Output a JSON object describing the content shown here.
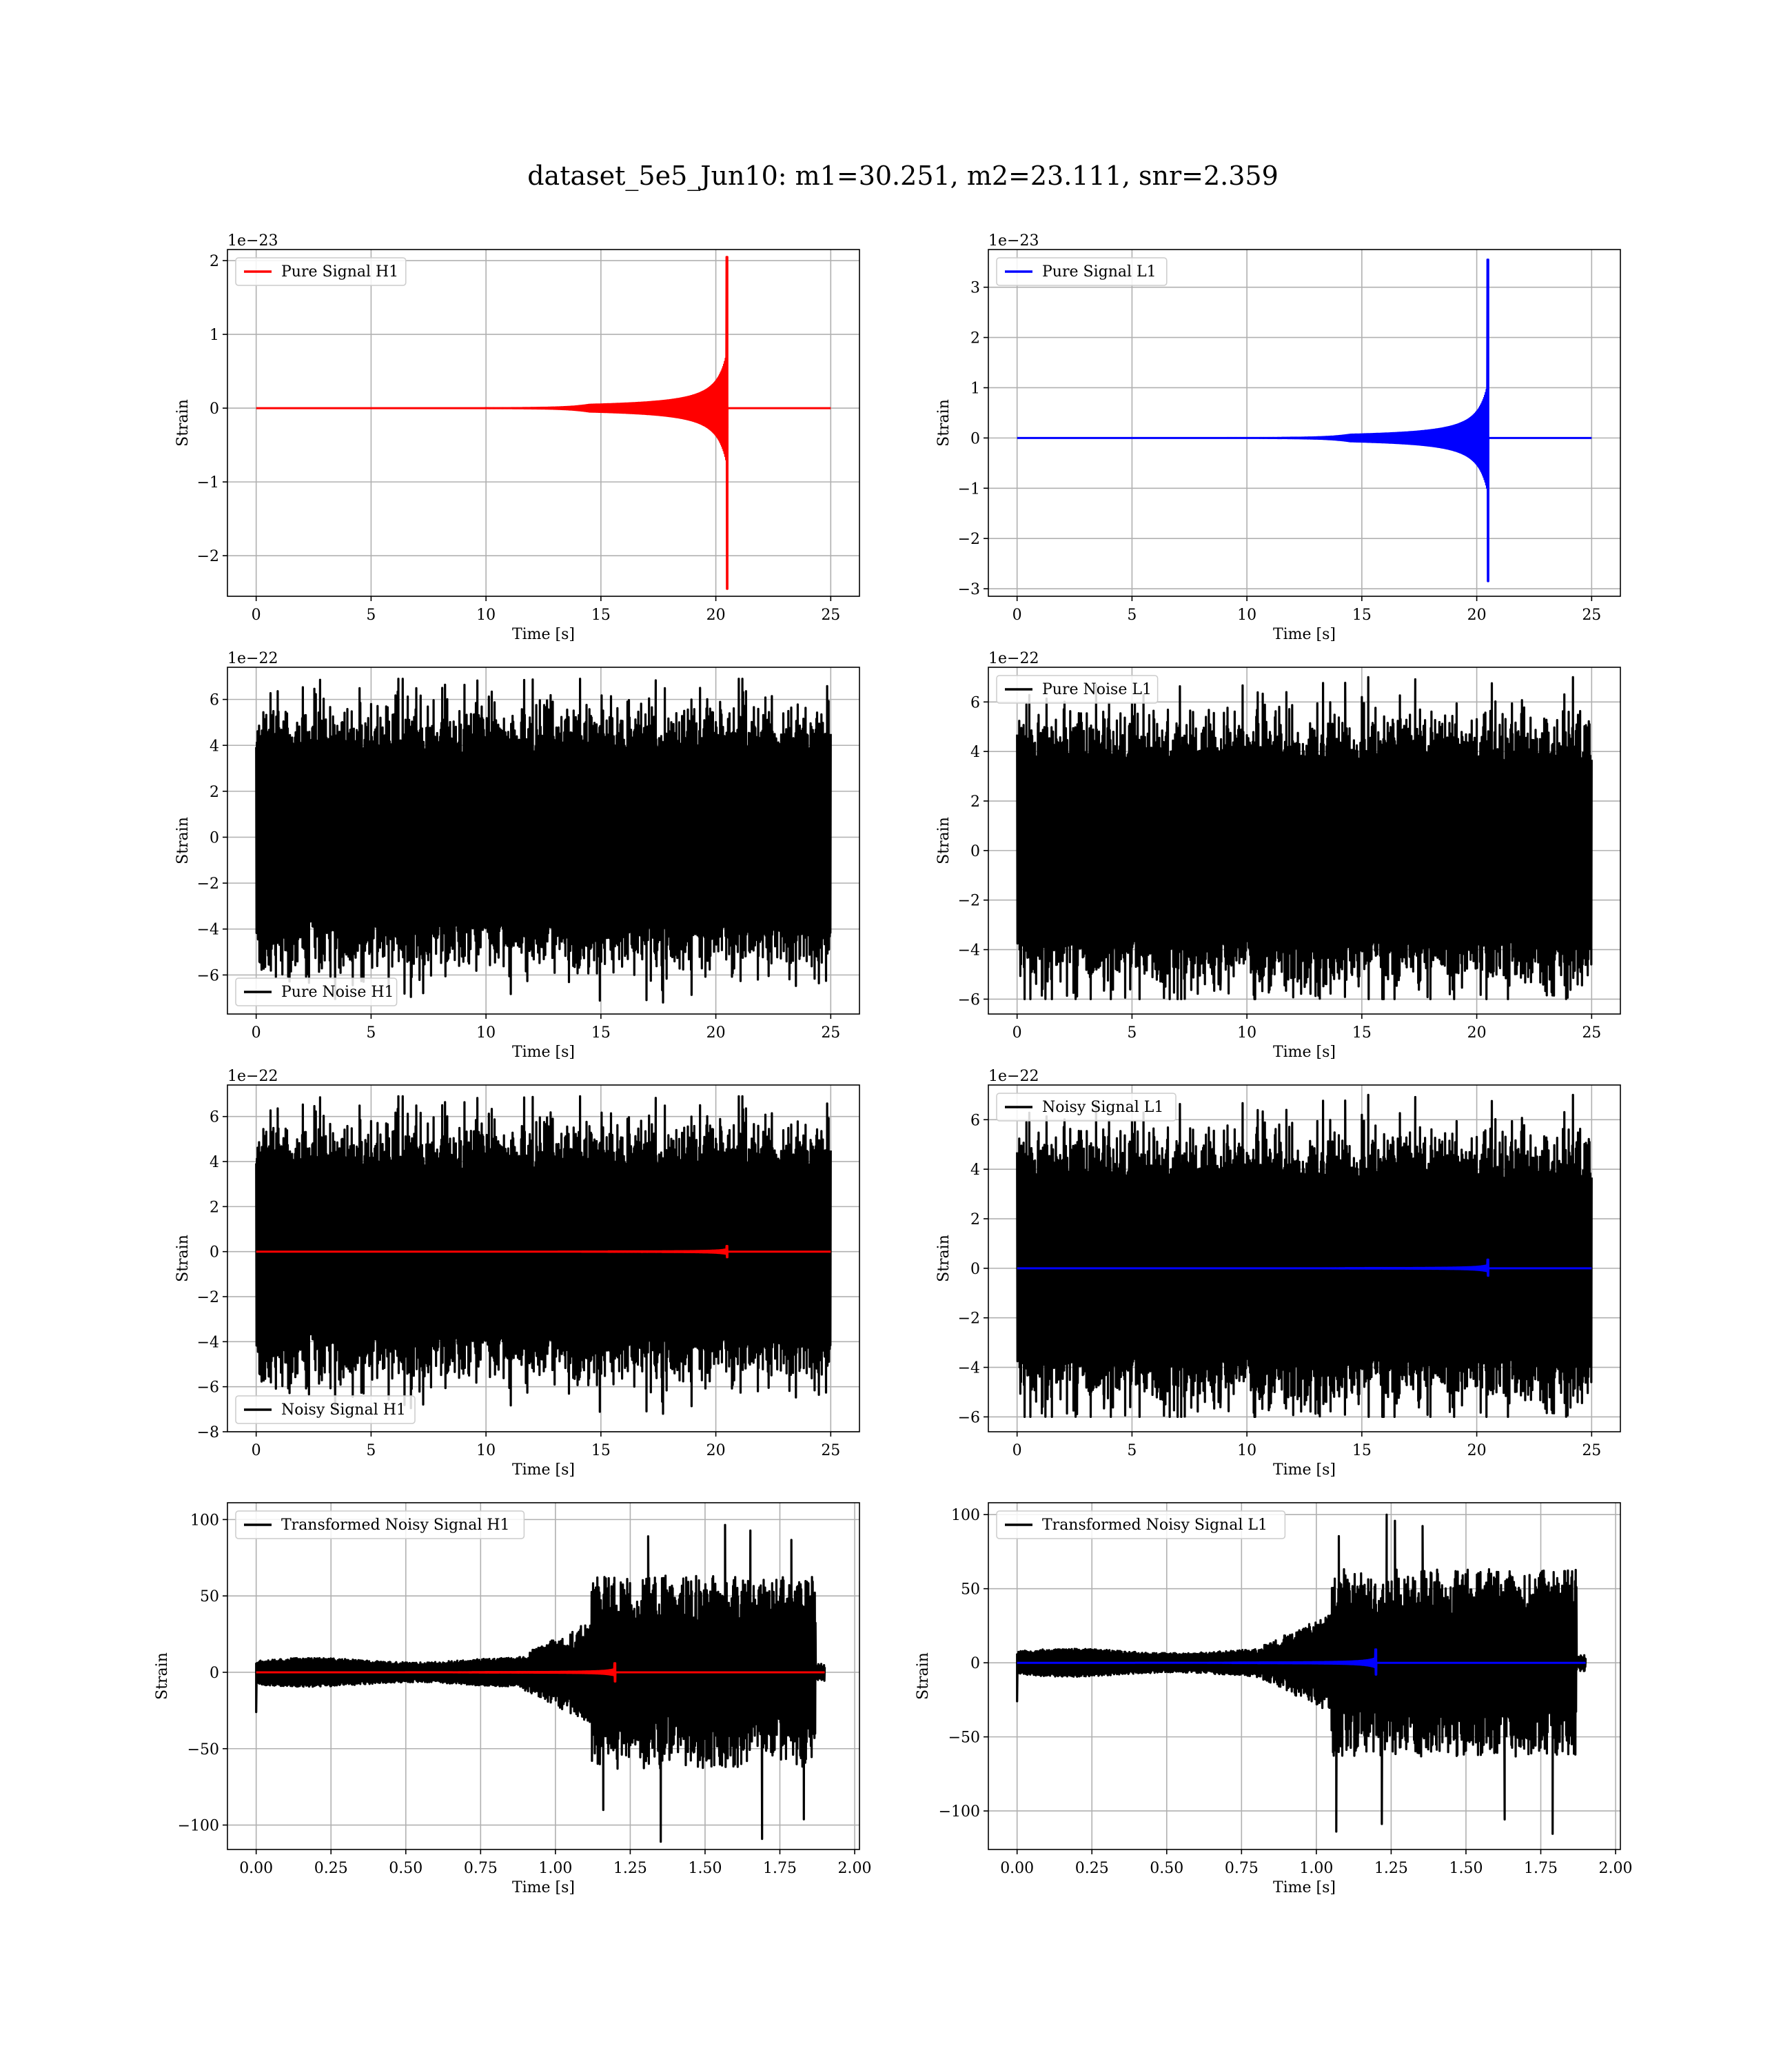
{
  "figure": {
    "title": "dataset_5e5_Jun10: m1=30.251, m2=23.111, snr=2.359"
  },
  "colors": {
    "h1_signal": "#ff0000",
    "l1_signal": "#0000ff",
    "noise": "#000000",
    "grid": "#b0b0b0"
  },
  "chart_data": [
    {
      "id": "pure-signal-h1",
      "type": "line",
      "xlabel": "Time [s]",
      "ylabel": "Strain",
      "xlim": [
        -1.25,
        26.25
      ],
      "ylim": [
        -2.55,
        2.15
      ],
      "xticks": [
        0,
        5,
        10,
        15,
        20,
        25
      ],
      "xtick_labels": [
        "0",
        "5",
        "10",
        "15",
        "20",
        "25"
      ],
      "yticks": [
        -2,
        -1,
        0,
        1,
        2
      ],
      "ytick_labels": [
        "−2",
        "−1",
        "0",
        "1",
        "2"
      ],
      "offset_text": "1e−23",
      "legend": "upper left",
      "grid": true,
      "series": [
        {
          "name": "Pure Signal H1",
          "color": "#ff0000",
          "kind": "chirp",
          "x_start": 0,
          "x_end": 25,
          "t_merge": 20.5,
          "peak_pos": 2.05,
          "peak_neg": -2.45,
          "plateau": 0.7
        }
      ]
    },
    {
      "id": "pure-signal-l1",
      "type": "line",
      "xlabel": "Time [s]",
      "ylabel": "Strain",
      "xlim": [
        -1.25,
        26.25
      ],
      "ylim": [
        -3.15,
        3.75
      ],
      "xticks": [
        0,
        5,
        10,
        15,
        20,
        25
      ],
      "xtick_labels": [
        "0",
        "5",
        "10",
        "15",
        "20",
        "25"
      ],
      "yticks": [
        -3,
        -2,
        -1,
        0,
        1,
        2,
        3
      ],
      "ytick_labels": [
        "−3",
        "−2",
        "−1",
        "0",
        "1",
        "2",
        "3"
      ],
      "offset_text": "1e−23",
      "legend": "upper left",
      "grid": true,
      "series": [
        {
          "name": "Pure Signal L1",
          "color": "#0000ff",
          "kind": "chirp",
          "x_start": 0,
          "x_end": 25,
          "t_merge": 20.5,
          "peak_pos": 3.55,
          "peak_neg": -2.85,
          "plateau": 1.0
        }
      ]
    },
    {
      "id": "pure-noise-h1",
      "type": "line",
      "xlabel": "Time [s]",
      "ylabel": "Strain",
      "xlim": [
        -1.25,
        26.25
      ],
      "ylim": [
        -7.7,
        7.4
      ],
      "xticks": [
        0,
        5,
        10,
        15,
        20,
        25
      ],
      "xtick_labels": [
        "0",
        "5",
        "10",
        "15",
        "20",
        "25"
      ],
      "yticks": [
        -6,
        -4,
        -2,
        0,
        2,
        4,
        6
      ],
      "ytick_labels": [
        "−6",
        "−4",
        "−2",
        "0",
        "2",
        "4",
        "6"
      ],
      "offset_text": "1e−22",
      "legend": "lower left",
      "grid": true,
      "series": [
        {
          "name": "Pure Noise H1",
          "color": "#000000",
          "kind": "noise",
          "x_start": 0,
          "x_end": 25,
          "amp": 5.0,
          "max": 6.9,
          "min": -7.2,
          "seed": 11
        }
      ]
    },
    {
      "id": "pure-noise-l1",
      "type": "line",
      "xlabel": "Time [s]",
      "ylabel": "Strain",
      "xlim": [
        -1.25,
        26.25
      ],
      "ylim": [
        -6.6,
        7.4
      ],
      "xticks": [
        0,
        5,
        10,
        15,
        20,
        25
      ],
      "xtick_labels": [
        "0",
        "5",
        "10",
        "15",
        "20",
        "25"
      ],
      "yticks": [
        -6,
        -4,
        -2,
        0,
        2,
        4,
        6
      ],
      "ytick_labels": [
        "−6",
        "−4",
        "−2",
        "0",
        "2",
        "4",
        "6"
      ],
      "offset_text": "1e−22",
      "legend": "upper left",
      "grid": true,
      "series": [
        {
          "name": "Pure Noise L1",
          "color": "#000000",
          "kind": "noise",
          "x_start": 0,
          "x_end": 25,
          "amp": 4.8,
          "max": 7.0,
          "min": -6.0,
          "seed": 23
        }
      ]
    },
    {
      "id": "noisy-signal-h1",
      "type": "line",
      "xlabel": "Time [s]",
      "ylabel": "Strain",
      "xlim": [
        -1.25,
        26.25
      ],
      "ylim": [
        -8.0,
        7.4
      ],
      "xticks": [
        0,
        5,
        10,
        15,
        20,
        25
      ],
      "xtick_labels": [
        "0",
        "5",
        "10",
        "15",
        "20",
        "25"
      ],
      "yticks": [
        -8,
        -6,
        -4,
        -2,
        0,
        2,
        4,
        6
      ],
      "ytick_labels": [
        "−8",
        "−6",
        "−4",
        "−2",
        "0",
        "2",
        "4",
        "6"
      ],
      "offset_text": "1e−22",
      "legend": "lower left",
      "grid": true,
      "series": [
        {
          "name": "Noisy Signal H1",
          "color": "#000000",
          "kind": "noise",
          "x_start": 0,
          "x_end": 25,
          "amp": 5.0,
          "max": 6.9,
          "min": -7.2,
          "seed": 11
        },
        {
          "name": "",
          "color": "#ff0000",
          "kind": "chirp",
          "x_start": 0,
          "x_end": 25,
          "t_merge": 20.5,
          "peak_pos": 0.25,
          "peak_neg": -0.25,
          "plateau": 0.1
        }
      ]
    },
    {
      "id": "noisy-signal-l1",
      "type": "line",
      "xlabel": "Time [s]",
      "ylabel": "Strain",
      "xlim": [
        -1.25,
        26.25
      ],
      "ylim": [
        -6.6,
        7.4
      ],
      "xticks": [
        0,
        5,
        10,
        15,
        20,
        25
      ],
      "xtick_labels": [
        "0",
        "5",
        "10",
        "15",
        "20",
        "25"
      ],
      "yticks": [
        -6,
        -4,
        -2,
        0,
        2,
        4,
        6
      ],
      "ytick_labels": [
        "−6",
        "−4",
        "−2",
        "0",
        "2",
        "4",
        "6"
      ],
      "offset_text": "1e−22",
      "legend": "upper left",
      "grid": true,
      "series": [
        {
          "name": "Noisy Signal L1",
          "color": "#000000",
          "kind": "noise",
          "x_start": 0,
          "x_end": 25,
          "amp": 4.8,
          "max": 7.0,
          "min": -6.0,
          "seed": 23
        },
        {
          "name": "",
          "color": "#0000ff",
          "kind": "chirp",
          "x_start": 0,
          "x_end": 25,
          "t_merge": 20.5,
          "peak_pos": 0.35,
          "peak_neg": -0.3,
          "plateau": 0.12
        }
      ]
    },
    {
      "id": "transformed-noisy-signal-h1",
      "type": "line",
      "xlabel": "Time [s]",
      "ylabel": "Strain",
      "xlim": [
        -0.096,
        2.016
      ],
      "ylim": [
        -116,
        111
      ],
      "xticks": [
        0,
        0.25,
        0.5,
        0.75,
        1.0,
        1.25,
        1.5,
        1.75,
        2.0
      ],
      "xtick_labels": [
        "0.00",
        "0.25",
        "0.50",
        "0.75",
        "1.00",
        "1.25",
        "1.50",
        "1.75",
        "2.00"
      ],
      "yticks": [
        -100,
        -50,
        0,
        50,
        100
      ],
      "ytick_labels": [
        "−100",
        "−50",
        "0",
        "50",
        "100"
      ],
      "offset_text": "",
      "legend": "upper left",
      "grid": true,
      "series": [
        {
          "name": "Transformed Noisy Signal H1",
          "color": "#000000",
          "kind": "whitened",
          "x_start": 0,
          "x_end": 1.9,
          "t_jump": 1.12,
          "t_end_big": 1.87,
          "low_amp": 8,
          "high_amp": 55,
          "max": 100,
          "min": -112,
          "seed": 37
        },
        {
          "name": "",
          "color": "#ff0000",
          "kind": "chirp",
          "x_start": 0,
          "x_end": 1.9,
          "t_merge": 1.2,
          "peak_pos": 6,
          "peak_neg": -6,
          "plateau": 2
        }
      ]
    },
    {
      "id": "transformed-noisy-signal-l1",
      "type": "line",
      "xlabel": "Time [s]",
      "ylabel": "Strain",
      "xlim": [
        -0.096,
        2.016
      ],
      "ylim": [
        -126,
        108
      ],
      "xticks": [
        0,
        0.25,
        0.5,
        0.75,
        1.0,
        1.25,
        1.5,
        1.75,
        2.0
      ],
      "xtick_labels": [
        "0.00",
        "0.25",
        "0.50",
        "0.75",
        "1.00",
        "1.25",
        "1.50",
        "1.75",
        "2.00"
      ],
      "yticks": [
        -100,
        -50,
        0,
        50,
        100
      ],
      "ytick_labels": [
        "−100",
        "−50",
        "0",
        "50",
        "100"
      ],
      "offset_text": "",
      "legend": "upper left",
      "grid": true,
      "series": [
        {
          "name": "Transformed Noisy Signal L1",
          "color": "#000000",
          "kind": "whitened",
          "x_start": 0,
          "x_end": 1.9,
          "t_jump": 1.05,
          "t_end_big": 1.87,
          "low_amp": 8,
          "high_amp": 55,
          "max": 100,
          "min": -118,
          "seed": 53
        },
        {
          "name": "",
          "color": "#0000ff",
          "kind": "chirp",
          "x_start": 0,
          "x_end": 1.9,
          "t_merge": 1.2,
          "peak_pos": 9,
          "peak_neg": -8,
          "plateau": 3
        }
      ]
    }
  ]
}
